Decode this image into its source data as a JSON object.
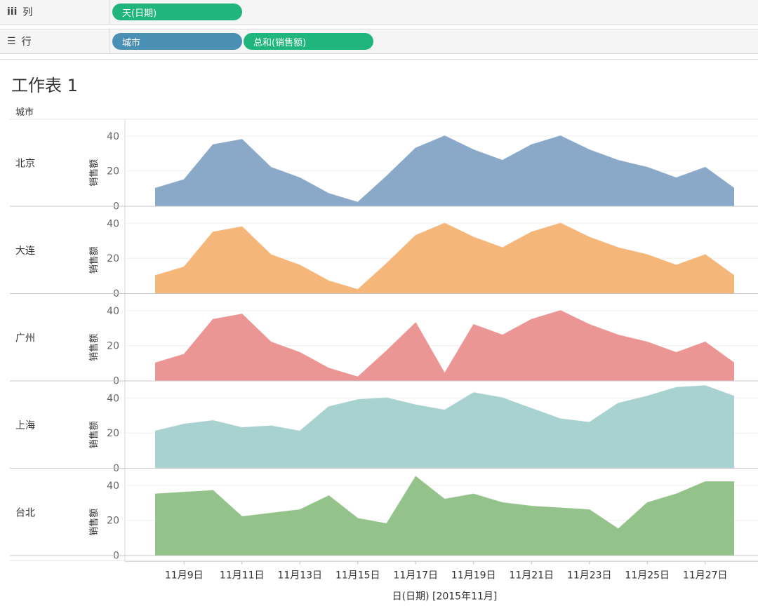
{
  "shelves": {
    "columns": {
      "label": "列",
      "icon": "columns-icon",
      "pills": [
        {
          "text": "天(日期)",
          "color": "#1fb57c"
        }
      ]
    },
    "rows": {
      "label": "行",
      "icon": "rows-icon",
      "pills": [
        {
          "text": "城市",
          "color": "#4a8fb4"
        },
        {
          "text": "总和(销售额)",
          "color": "#1fb57c"
        }
      ]
    }
  },
  "sheet": {
    "title": "工作表 1",
    "row_header": "城市"
  },
  "chart_data": {
    "type": "area",
    "x": [
      8,
      9,
      10,
      11,
      12,
      13,
      14,
      15,
      16,
      17,
      18,
      19,
      20,
      21,
      22,
      23,
      24,
      25,
      26,
      27,
      28
    ],
    "x_tick_labels": [
      {
        "x": 9,
        "label": "11月9日"
      },
      {
        "x": 11,
        "label": "11月11日"
      },
      {
        "x": 13,
        "label": "11月13日"
      },
      {
        "x": 15,
        "label": "11月15日"
      },
      {
        "x": 17,
        "label": "11月17日"
      },
      {
        "x": 19,
        "label": "11月19日"
      },
      {
        "x": 21,
        "label": "11月21日"
      },
      {
        "x": 23,
        "label": "11月23日"
      },
      {
        "x": 25,
        "label": "11月25日"
      },
      {
        "x": 27,
        "label": "11月27日"
      }
    ],
    "xlabel": "日(日期) [2015年11月]",
    "ylabel": "销售额",
    "ylim": [
      0,
      48
    ],
    "yticks": [
      0,
      20,
      40
    ],
    "grid": true,
    "series": [
      {
        "name": "北京",
        "color": "#8aa8c8",
        "values": [
          10,
          15,
          35,
          38,
          22,
          16,
          7,
          2,
          17,
          33,
          40,
          32,
          26,
          35,
          40,
          32,
          26,
          22,
          16,
          22,
          10
        ]
      },
      {
        "name": "大连",
        "color": "#f5b67a",
        "values": [
          10,
          15,
          35,
          38,
          22,
          16,
          7,
          2,
          17,
          33,
          40,
          32,
          26,
          35,
          40,
          32,
          26,
          22,
          16,
          22,
          10
        ]
      },
      {
        "name": "广州",
        "color": "#ec9595",
        "values": [
          10,
          15,
          35,
          38,
          22,
          16,
          7,
          2,
          17,
          33,
          4,
          32,
          26,
          35,
          40,
          32,
          26,
          22,
          16,
          22,
          10
        ]
      },
      {
        "name": "上海",
        "color": "#a8d2cf",
        "values": [
          21,
          25,
          27,
          23,
          24,
          21,
          35,
          39,
          40,
          36,
          33,
          43,
          40,
          34,
          28,
          26,
          37,
          41,
          46,
          47,
          41
        ]
      },
      {
        "name": "台北",
        "color": "#93c38a",
        "values": [
          35,
          36,
          37,
          22,
          24,
          26,
          34,
          21,
          18,
          45,
          32,
          35,
          30,
          28,
          27,
          26,
          15,
          30,
          35,
          42,
          42
        ]
      }
    ]
  }
}
